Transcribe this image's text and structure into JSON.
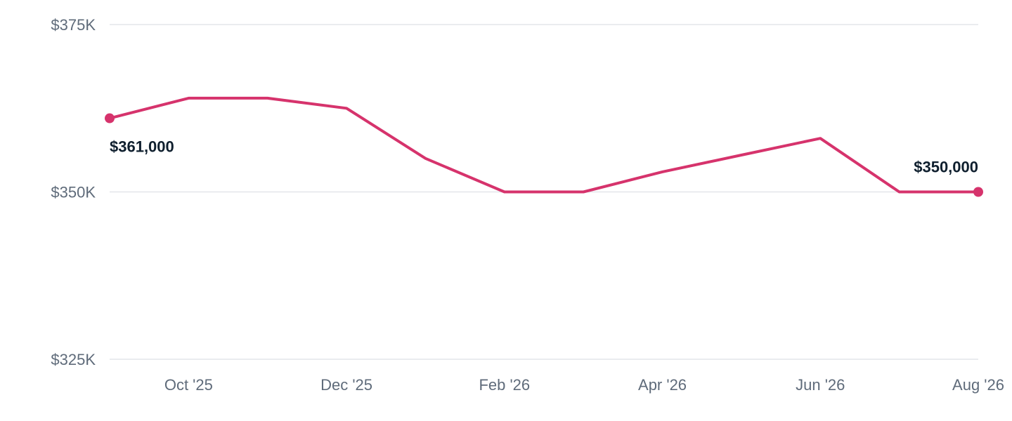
{
  "chart_data": {
    "type": "line",
    "x": [
      "Sep '25",
      "Oct '25",
      "Nov '25",
      "Dec '25",
      "Jan '26",
      "Feb '26",
      "Mar '26",
      "Apr '26",
      "May '26",
      "Jun '26",
      "Jul '26",
      "Aug '26"
    ],
    "series": [
      {
        "values": [
          361000,
          364000,
          364000,
          362500,
          355000,
          350000,
          350000,
          353000,
          355500,
          358000,
          350000,
          350000
        ],
        "color": "#d6336c"
      }
    ],
    "x_tick_labels": [
      {
        "x": "Oct '25",
        "label": "Oct '25"
      },
      {
        "x": "Dec '25",
        "label": "Dec '25"
      },
      {
        "x": "Feb '26",
        "label": "Feb '26"
      },
      {
        "x": "Apr '26",
        "label": "Apr '26"
      },
      {
        "x": "Jun '26",
        "label": "Jun '26"
      },
      {
        "x": "Aug '26",
        "label": "Aug '26"
      }
    ],
    "y_ticks": [
      {
        "value": 375000,
        "label": "$375K"
      },
      {
        "value": 350000,
        "label": "$350K"
      },
      {
        "value": 325000,
        "label": "$325K"
      }
    ],
    "data_labels": [
      {
        "x": "Sep '25",
        "text": "$361,000"
      },
      {
        "x": "Aug '26",
        "text": "$350,000"
      }
    ],
    "ylim": [
      325000,
      375000
    ],
    "grid": true,
    "title": "",
    "xlabel": "",
    "ylabel": "",
    "line_color": "#d6336c",
    "grid_color": "#e3e6ea"
  }
}
